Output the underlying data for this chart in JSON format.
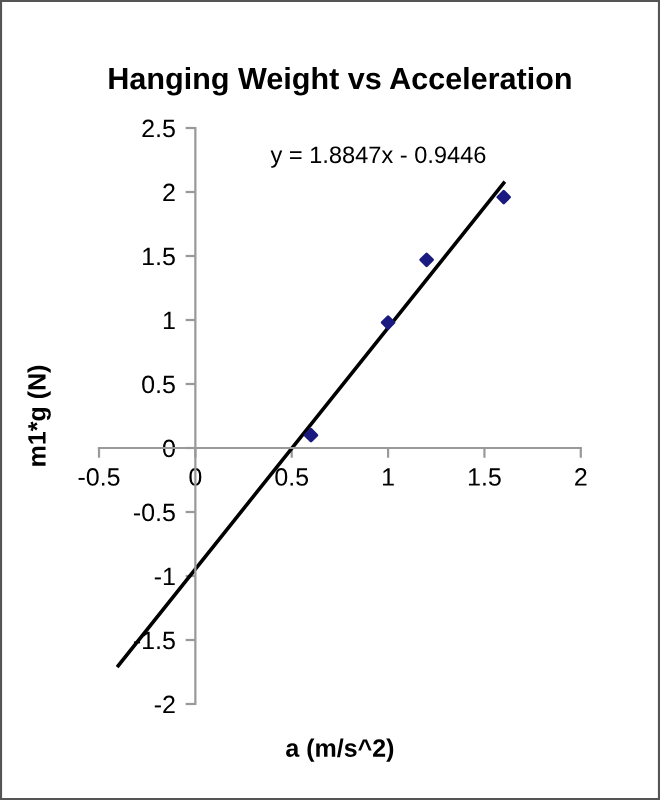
{
  "chart_data": {
    "type": "scatter",
    "title": "Hanging Weight vs Acceleration",
    "xlabel": "a (m/s^2)",
    "ylabel": "m1*g (N)",
    "x": [
      0.6,
      1.0,
      1.2,
      1.6
    ],
    "series": [
      {
        "color": "#1a1a80",
        "marker": "diamond",
        "values": [
          0.1,
          0.98,
          1.47,
          1.96
        ]
      },
      {
        "type": "line",
        "color": "#000000",
        "marker": "none",
        "line_style": "solid",
        "x": [
          -0.4,
          1.6
        ],
        "values": [
          -1.7,
          2.07
        ]
      }
    ],
    "annotations": [
      "y = 1.8847x - 0.9446"
    ],
    "xlim": [
      -0.5,
      2
    ],
    "ylim": [
      -2,
      2.5
    ],
    "xticks": [
      -0.5,
      0,
      0.5,
      1,
      1.5,
      2
    ],
    "yticks": [
      -2,
      -1.5,
      -1,
      -0.5,
      0,
      0.5,
      1,
      1.5,
      2,
      2.5
    ],
    "grid": false,
    "legend": false
  }
}
